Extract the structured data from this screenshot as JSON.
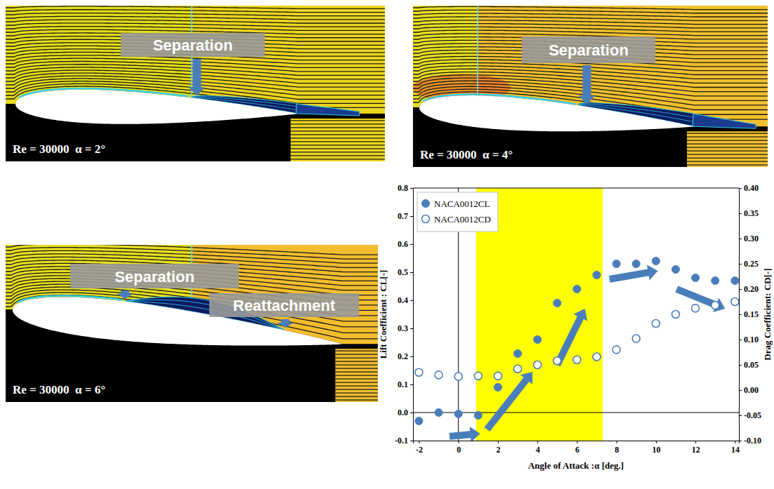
{
  "panels": [
    {
      "caption": "Re = 30000  α = 2°",
      "alpha": 2,
      "labels": [
        "Separation"
      ]
    },
    {
      "caption": "Re = 30000  α = 4°",
      "alpha": 4,
      "labels": [
        "Separation"
      ]
    },
    {
      "caption": "Re = 30000  α = 6°",
      "alpha": 6,
      "labels": [
        "Separation",
        "Reattachment"
      ]
    }
  ],
  "chart_data": {
    "type": "scatter",
    "x": [
      -2,
      -1,
      0,
      1,
      2,
      3,
      4,
      5,
      6,
      7,
      8,
      9,
      10,
      11,
      12,
      13,
      14
    ],
    "series": [
      {
        "name": "NACA0012CL",
        "color": "#4a7ebb",
        "marker": "circle",
        "values": [
          -0.03,
          0.0,
          -0.005,
          -0.01,
          0.09,
          0.21,
          0.26,
          0.39,
          0.44,
          0.49,
          0.53,
          0.53,
          0.54,
          0.51,
          0.48,
          0.47,
          0.47
        ]
      },
      {
        "name": "NACA0012CD",
        "color": "#4a7ebb",
        "marker": "open-circle",
        "axis": "y2",
        "values": [
          0.035,
          0.03,
          0.027,
          0.028,
          0.028,
          0.042,
          0.05,
          0.058,
          0.06,
          0.066,
          0.08,
          0.102,
          0.132,
          0.15,
          0.162,
          0.168,
          0.175
        ]
      }
    ],
    "xlabel": "Angle of Attack :α [deg.]",
    "ylabel": "Lift Coefficient : CL[-]",
    "y2label": "Drag Coefficient: CD[-]",
    "xlim": [
      -2.3,
      14.2
    ],
    "xticks": [
      -2,
      0,
      2,
      4,
      6,
      8,
      10,
      12,
      14
    ],
    "ylim": [
      -0.1,
      0.8
    ],
    "yticks": [
      -0.1,
      {
        "value": 0,
        "label": "0.0"
      },
      0.1,
      0.2,
      0.3,
      0.4,
      0.5,
      0.6,
      0.7,
      0.8
    ],
    "y2lim": [
      -0.1,
      0.4
    ],
    "y2ticks": [
      {
        "value": -0.1,
        "label": "-0.10"
      },
      -0.05,
      {
        "value": 0,
        "label": "0.00"
      },
      0.05,
      {
        "value": 0.1,
        "label": "0.10"
      },
      0.15,
      {
        "value": 0.2,
        "label": "0.20"
      },
      0.25,
      {
        "value": 0.3,
        "label": "0.30"
      },
      0.35,
      {
        "value": 0.4,
        "label": "0.40"
      }
    ],
    "grid": false,
    "legend": "upper left",
    "highlight": {
      "x": [
        0.9,
        7.3
      ],
      "color": "#ffff00"
    },
    "arrows": [
      [
        -0.45,
        -0.085,
        1.1,
        -0.075
      ],
      [
        1.45,
        -0.06,
        3.75,
        0.145
      ],
      [
        5.0,
        0.17,
        6.4,
        0.37
      ],
      [
        7.65,
        0.475,
        10.1,
        0.505
      ],
      [
        11.05,
        0.44,
        13.5,
        0.37
      ]
    ]
  }
}
